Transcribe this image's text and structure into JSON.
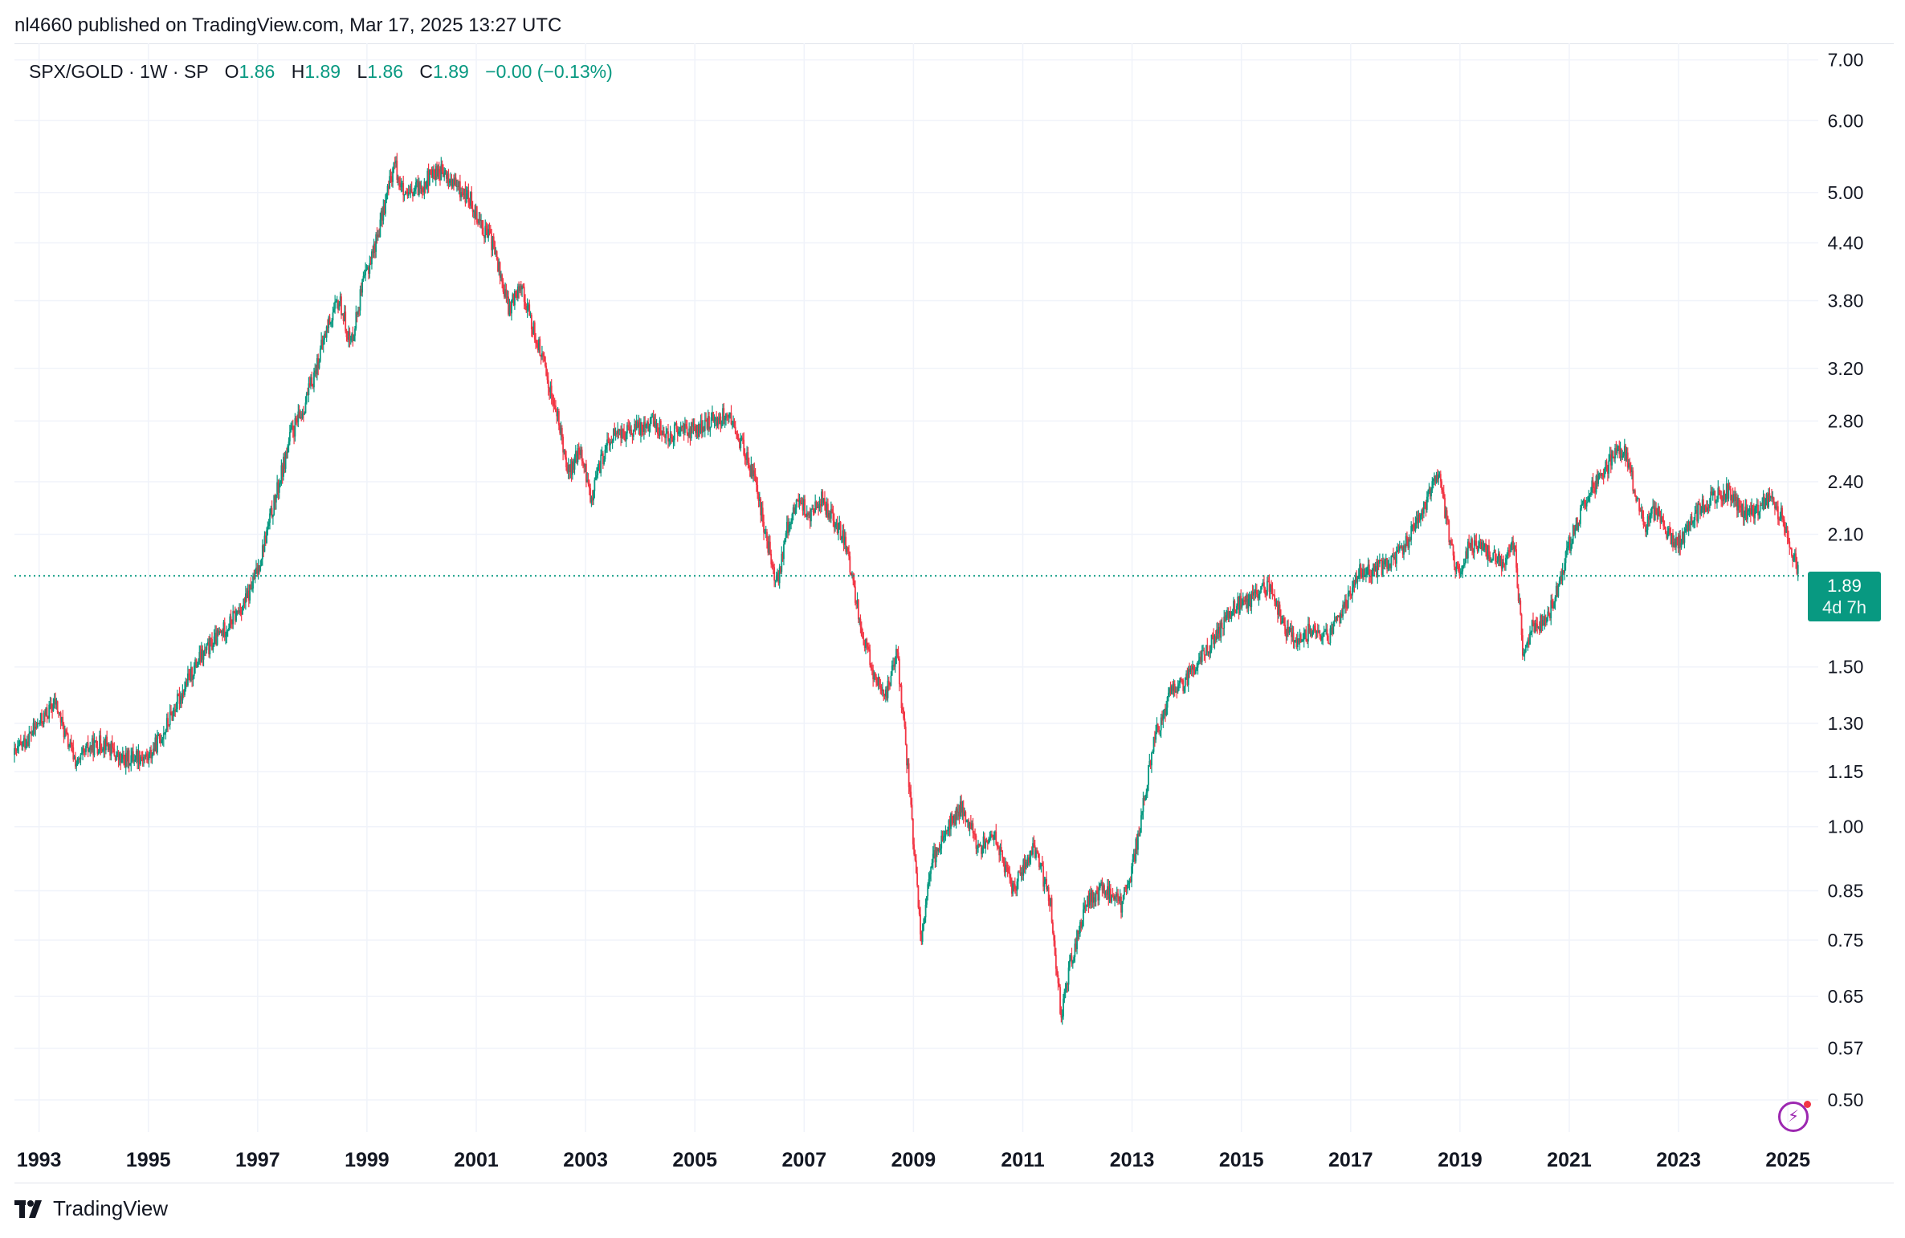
{
  "header": {
    "published_by": "nl4660 published on TradingView.com, Mar 17, 2025 13:27 UTC"
  },
  "legend": {
    "symbol": "SPX/GOLD · 1W · SP",
    "open_label": "O",
    "open": "1.86",
    "high_label": "H",
    "high": "1.89",
    "low_label": "L",
    "low": "1.86",
    "close_label": "C",
    "close": "1.89",
    "change": "−0.00 (−0.13%)"
  },
  "price_badge": {
    "price": "1.89",
    "countdown": "4d 7h"
  },
  "footer": {
    "brand": "TradingView"
  },
  "colors": {
    "up": "#089981",
    "down": "#f23645",
    "grid": "#f0f3fa",
    "accent": "#9c27b0"
  },
  "chart_data": {
    "type": "candlestick",
    "title": "SPX/GOLD",
    "interval": "1W",
    "scale": "log",
    "ylim": [
      0.48,
      7.3
    ],
    "xlim": [
      1992.55,
      2025.35
    ],
    "last_price": 1.89,
    "y_ticks": [
      "7.00",
      "6.00",
      "5.00",
      "4.40",
      "3.80",
      "3.20",
      "2.80",
      "2.40",
      "2.10",
      "1.50",
      "1.30",
      "1.15",
      "1.00",
      "0.85",
      "0.75",
      "0.65",
      "0.57",
      "0.50"
    ],
    "x_ticks": [
      "1993",
      "1995",
      "1997",
      "1999",
      "2001",
      "2003",
      "2005",
      "2007",
      "2009",
      "2011",
      "2013",
      "2015",
      "2017",
      "2019",
      "2021",
      "2023",
      "2025"
    ],
    "path_points": [
      [
        1992.55,
        1.2
      ],
      [
        1993.0,
        1.3
      ],
      [
        1993.3,
        1.37
      ],
      [
        1993.5,
        1.25
      ],
      [
        1993.7,
        1.17
      ],
      [
        1993.9,
        1.22
      ],
      [
        1994.2,
        1.24
      ],
      [
        1994.5,
        1.18
      ],
      [
        1994.8,
        1.2
      ],
      [
        1995.0,
        1.19
      ],
      [
        1995.3,
        1.28
      ],
      [
        1995.6,
        1.4
      ],
      [
        1995.9,
        1.52
      ],
      [
        1996.2,
        1.6
      ],
      [
        1996.5,
        1.68
      ],
      [
        1996.8,
        1.78
      ],
      [
        1997.0,
        1.92
      ],
      [
        1997.2,
        2.15
      ],
      [
        1997.4,
        2.4
      ],
      [
        1997.6,
        2.7
      ],
      [
        1997.8,
        2.85
      ],
      [
        1998.0,
        3.1
      ],
      [
        1998.3,
        3.6
      ],
      [
        1998.5,
        3.8
      ],
      [
        1998.7,
        3.4
      ],
      [
        1998.9,
        3.9
      ],
      [
        1999.2,
        4.5
      ],
      [
        1999.5,
        5.4
      ],
      [
        1999.7,
        4.9
      ],
      [
        2000.0,
        5.1
      ],
      [
        2000.3,
        5.3
      ],
      [
        2000.6,
        5.1
      ],
      [
        2000.9,
        4.9
      ],
      [
        2001.1,
        4.6
      ],
      [
        2001.3,
        4.4
      ],
      [
        2001.6,
        3.7
      ],
      [
        2001.8,
        4.0
      ],
      [
        2002.0,
        3.6
      ],
      [
        2002.2,
        3.3
      ],
      [
        2002.5,
        2.8
      ],
      [
        2002.7,
        2.45
      ],
      [
        2002.9,
        2.6
      ],
      [
        2003.1,
        2.3
      ],
      [
        2003.3,
        2.55
      ],
      [
        2003.5,
        2.7
      ],
      [
        2003.8,
        2.72
      ],
      [
        2004.2,
        2.8
      ],
      [
        2004.5,
        2.7
      ],
      [
        2004.8,
        2.75
      ],
      [
        2005.0,
        2.72
      ],
      [
        2005.3,
        2.8
      ],
      [
        2005.6,
        2.85
      ],
      [
        2005.9,
        2.6
      ],
      [
        2006.1,
        2.4
      ],
      [
        2006.3,
        2.1
      ],
      [
        2006.5,
        1.85
      ],
      [
        2006.7,
        2.15
      ],
      [
        2006.9,
        2.3
      ],
      [
        2007.1,
        2.2
      ],
      [
        2007.3,
        2.3
      ],
      [
        2007.5,
        2.2
      ],
      [
        2007.7,
        2.1
      ],
      [
        2007.9,
        1.85
      ],
      [
        2008.1,
        1.6
      ],
      [
        2008.3,
        1.45
      ],
      [
        2008.5,
        1.4
      ],
      [
        2008.7,
        1.55
      ],
      [
        2008.9,
        1.15
      ],
      [
        2009.0,
        0.95
      ],
      [
        2009.15,
        0.75
      ],
      [
        2009.3,
        0.9
      ],
      [
        2009.6,
        1.0
      ],
      [
        2009.9,
        1.05
      ],
      [
        2010.2,
        0.95
      ],
      [
        2010.5,
        0.98
      ],
      [
        2010.8,
        0.85
      ],
      [
        2011.0,
        0.9
      ],
      [
        2011.2,
        0.95
      ],
      [
        2011.5,
        0.83
      ],
      [
        2011.7,
        0.62
      ],
      [
        2011.9,
        0.72
      ],
      [
        2012.2,
        0.83
      ],
      [
        2012.5,
        0.86
      ],
      [
        2012.8,
        0.82
      ],
      [
        2013.0,
        0.9
      ],
      [
        2013.2,
        1.05
      ],
      [
        2013.4,
        1.25
      ],
      [
        2013.7,
        1.4
      ],
      [
        2014.0,
        1.45
      ],
      [
        2014.3,
        1.55
      ],
      [
        2014.6,
        1.65
      ],
      [
        2014.9,
        1.75
      ],
      [
        2015.2,
        1.78
      ],
      [
        2015.5,
        1.85
      ],
      [
        2015.8,
        1.65
      ],
      [
        2016.0,
        1.6
      ],
      [
        2016.3,
        1.65
      ],
      [
        2016.6,
        1.62
      ],
      [
        2016.9,
        1.75
      ],
      [
        2017.1,
        1.9
      ],
      [
        2017.4,
        1.92
      ],
      [
        2017.7,
        1.95
      ],
      [
        2018.0,
        2.05
      ],
      [
        2018.3,
        2.2
      ],
      [
        2018.6,
        2.45
      ],
      [
        2018.8,
        2.1
      ],
      [
        2018.95,
        1.9
      ],
      [
        2019.2,
        2.05
      ],
      [
        2019.5,
        2.0
      ],
      [
        2019.8,
        1.95
      ],
      [
        2020.0,
        2.05
      ],
      [
        2020.15,
        1.55
      ],
      [
        2020.3,
        1.65
      ],
      [
        2020.6,
        1.7
      ],
      [
        2020.8,
        1.85
      ],
      [
        2021.0,
        2.05
      ],
      [
        2021.3,
        2.3
      ],
      [
        2021.6,
        2.45
      ],
      [
        2021.8,
        2.55
      ],
      [
        2022.0,
        2.6
      ],
      [
        2022.2,
        2.35
      ],
      [
        2022.4,
        2.15
      ],
      [
        2022.6,
        2.25
      ],
      [
        2022.8,
        2.1
      ],
      [
        2023.0,
        2.05
      ],
      [
        2023.3,
        2.2
      ],
      [
        2023.6,
        2.3
      ],
      [
        2023.9,
        2.35
      ],
      [
        2024.1,
        2.25
      ],
      [
        2024.3,
        2.2
      ],
      [
        2024.6,
        2.3
      ],
      [
        2024.9,
        2.2
      ],
      [
        2025.05,
        2.05
      ],
      [
        2025.2,
        1.89
      ]
    ]
  }
}
